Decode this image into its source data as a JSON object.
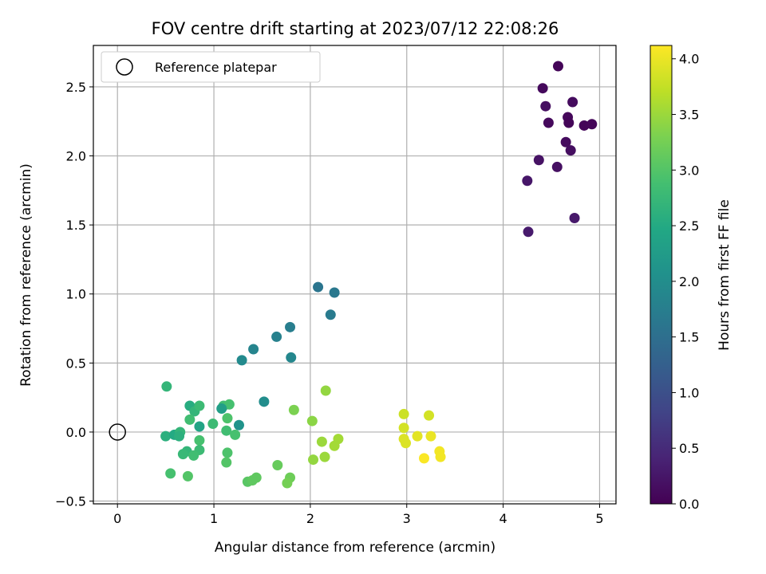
{
  "chart_data": {
    "type": "scatter",
    "title": "FOV centre drift starting at 2023/07/12 22:08:26",
    "xlabel": "Angular distance from reference (arcmin)",
    "ylabel": "Rotation from reference (arcmin)",
    "xlim": [
      -0.25,
      5.17
    ],
    "ylim": [
      -0.52,
      2.8
    ],
    "xticks": [
      0,
      1,
      2,
      3,
      4,
      5
    ],
    "xtick_labels": [
      "0",
      "1",
      "2",
      "3",
      "4",
      "5"
    ],
    "yticks": [
      -0.5,
      0.0,
      0.5,
      1.0,
      1.5,
      2.0,
      2.5
    ],
    "ytick_labels": [
      "−0.5",
      "0.0",
      "0.5",
      "1.0",
      "1.5",
      "2.0",
      "2.5"
    ],
    "grid": true,
    "legend": {
      "position": "top-left",
      "entries": [
        "Reference platepar"
      ]
    },
    "reference_point": {
      "x": 0.0,
      "y": 0.0
    },
    "colorbar": {
      "label": "Hours from first FF file",
      "range": [
        0.0,
        4.12
      ],
      "ticks": [
        0.0,
        0.5,
        1.0,
        1.5,
        2.0,
        2.5,
        3.0,
        3.5,
        4.0
      ],
      "tick_labels": [
        "0.0",
        "0.5",
        "1.0",
        "1.5",
        "2.0",
        "2.5",
        "3.0",
        "3.5",
        "4.0"
      ],
      "colormap": "viridis"
    },
    "points": [
      {
        "x": 4.57,
        "y": 2.65,
        "t": 0.05
      },
      {
        "x": 4.41,
        "y": 2.49,
        "t": 0.1
      },
      {
        "x": 4.44,
        "y": 2.36,
        "t": 0.15
      },
      {
        "x": 4.72,
        "y": 2.39,
        "t": 0.12
      },
      {
        "x": 4.67,
        "y": 2.28,
        "t": 0.08
      },
      {
        "x": 4.68,
        "y": 2.24,
        "t": 0.05
      },
      {
        "x": 4.47,
        "y": 2.24,
        "t": 0.1
      },
      {
        "x": 4.84,
        "y": 2.22,
        "t": 0.05
      },
      {
        "x": 4.92,
        "y": 2.23,
        "t": 0.06
      },
      {
        "x": 4.65,
        "y": 2.1,
        "t": 0.12
      },
      {
        "x": 4.7,
        "y": 2.04,
        "t": 0.15
      },
      {
        "x": 4.37,
        "y": 1.97,
        "t": 0.2
      },
      {
        "x": 4.56,
        "y": 1.92,
        "t": 0.18
      },
      {
        "x": 4.25,
        "y": 1.82,
        "t": 0.25
      },
      {
        "x": 4.74,
        "y": 1.55,
        "t": 0.28
      },
      {
        "x": 4.26,
        "y": 1.45,
        "t": 0.3
      },
      {
        "x": 2.08,
        "y": 1.05,
        "t": 1.6
      },
      {
        "x": 2.25,
        "y": 1.01,
        "t": 1.65
      },
      {
        "x": 2.21,
        "y": 0.85,
        "t": 1.7
      },
      {
        "x": 1.79,
        "y": 0.76,
        "t": 1.75
      },
      {
        "x": 1.65,
        "y": 0.69,
        "t": 1.8
      },
      {
        "x": 1.41,
        "y": 0.6,
        "t": 1.85
      },
      {
        "x": 1.8,
        "y": 0.54,
        "t": 1.9
      },
      {
        "x": 1.29,
        "y": 0.52,
        "t": 1.95
      },
      {
        "x": 1.52,
        "y": 0.22,
        "t": 2.0
      },
      {
        "x": 1.26,
        "y": 0.05,
        "t": 2.1
      },
      {
        "x": 0.51,
        "y": 0.33,
        "t": 2.7
      },
      {
        "x": 0.75,
        "y": 0.19,
        "t": 2.55
      },
      {
        "x": 0.8,
        "y": 0.15,
        "t": 2.7
      },
      {
        "x": 0.85,
        "y": 0.19,
        "t": 2.8
      },
      {
        "x": 1.1,
        "y": 0.19,
        "t": 2.85
      },
      {
        "x": 1.16,
        "y": 0.2,
        "t": 2.9
      },
      {
        "x": 1.08,
        "y": 0.17,
        "t": 2.3
      },
      {
        "x": 1.14,
        "y": 0.1,
        "t": 2.95
      },
      {
        "x": 0.75,
        "y": 0.09,
        "t": 2.85
      },
      {
        "x": 0.99,
        "y": 0.06,
        "t": 2.8
      },
      {
        "x": 0.85,
        "y": 0.04,
        "t": 2.4
      },
      {
        "x": 0.5,
        "y": -0.03,
        "t": 2.6
      },
      {
        "x": 0.59,
        "y": -0.02,
        "t": 2.5
      },
      {
        "x": 0.65,
        "y": 0.0,
        "t": 2.7
      },
      {
        "x": 0.64,
        "y": -0.03,
        "t": 2.6
      },
      {
        "x": 1.13,
        "y": 0.01,
        "t": 2.85
      },
      {
        "x": 1.22,
        "y": -0.02,
        "t": 2.9
      },
      {
        "x": 0.85,
        "y": -0.06,
        "t": 2.9
      },
      {
        "x": 0.85,
        "y": -0.13,
        "t": 2.8
      },
      {
        "x": 0.72,
        "y": -0.14,
        "t": 2.7
      },
      {
        "x": 0.68,
        "y": -0.16,
        "t": 2.75
      },
      {
        "x": 0.79,
        "y": -0.17,
        "t": 2.85
      },
      {
        "x": 1.14,
        "y": -0.15,
        "t": 2.95
      },
      {
        "x": 1.13,
        "y": -0.22,
        "t": 3.0
      },
      {
        "x": 0.55,
        "y": -0.3,
        "t": 2.9
      },
      {
        "x": 0.73,
        "y": -0.32,
        "t": 3.0
      },
      {
        "x": 1.35,
        "y": -0.36,
        "t": 3.05
      },
      {
        "x": 1.4,
        "y": -0.35,
        "t": 3.1
      },
      {
        "x": 1.44,
        "y": -0.33,
        "t": 3.1
      },
      {
        "x": 1.66,
        "y": -0.24,
        "t": 3.15
      },
      {
        "x": 1.79,
        "y": -0.33,
        "t": 3.2
      },
      {
        "x": 1.76,
        "y": -0.37,
        "t": 3.25
      },
      {
        "x": 1.83,
        "y": 0.16,
        "t": 3.3
      },
      {
        "x": 2.02,
        "y": 0.08,
        "t": 3.4
      },
      {
        "x": 2.16,
        "y": 0.3,
        "t": 3.45
      },
      {
        "x": 2.12,
        "y": -0.07,
        "t": 3.5
      },
      {
        "x": 2.29,
        "y": -0.05,
        "t": 3.55
      },
      {
        "x": 2.25,
        "y": -0.1,
        "t": 3.55
      },
      {
        "x": 2.15,
        "y": -0.18,
        "t": 3.5
      },
      {
        "x": 2.03,
        "y": -0.2,
        "t": 3.45
      },
      {
        "x": 2.97,
        "y": 0.13,
        "t": 3.8
      },
      {
        "x": 3.23,
        "y": 0.12,
        "t": 3.85
      },
      {
        "x": 2.97,
        "y": 0.03,
        "t": 3.85
      },
      {
        "x": 2.97,
        "y": -0.05,
        "t": 3.9
      },
      {
        "x": 2.99,
        "y": -0.08,
        "t": 3.9
      },
      {
        "x": 3.11,
        "y": -0.03,
        "t": 3.95
      },
      {
        "x": 3.25,
        "y": -0.03,
        "t": 4.0
      },
      {
        "x": 3.34,
        "y": -0.14,
        "t": 4.05
      },
      {
        "x": 3.35,
        "y": -0.18,
        "t": 4.05
      },
      {
        "x": 3.18,
        "y": -0.19,
        "t": 4.1
      }
    ]
  }
}
